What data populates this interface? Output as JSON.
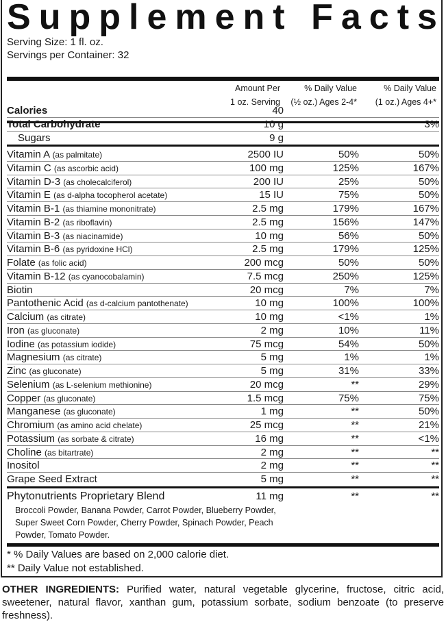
{
  "title": "Supplement Facts",
  "serving_size": "Serving Size: 1 fl. oz.",
  "servings_per_container": "Servings per Container: 32",
  "headers": {
    "amount": [
      "Amount Per",
      "1 oz. Serving"
    ],
    "dv_child": [
      "% Daily Value",
      "(½ oz.) Ages 2-4*"
    ],
    "dv_adult": [
      "% Daily Value",
      "(1 oz.) Ages 4+*"
    ]
  },
  "macros": [
    {
      "name": "Calories",
      "qualifier": "",
      "amount": "40",
      "dv_child": "",
      "dv_adult": "",
      "bold": true
    },
    {
      "name": "Total Carbohydrate",
      "qualifier": "",
      "amount": "10 g",
      "dv_child": "",
      "dv_adult": "3%",
      "bold": true
    },
    {
      "name": "Sugars",
      "qualifier": "",
      "amount": "9 g",
      "dv_child": "",
      "dv_adult": "",
      "indent": true
    }
  ],
  "nutrients": [
    {
      "name": "Vitamin A",
      "qualifier": "(as palmitate)",
      "amount": "2500 IU",
      "dv_child": "50%",
      "dv_adult": "50%"
    },
    {
      "name": "Vitamin C",
      "qualifier": "(as ascorbic acid)",
      "amount": "100 mg",
      "dv_child": "125%",
      "dv_adult": "167%"
    },
    {
      "name": "Vitamin D-3",
      "qualifier": "(as cholecalciferol)",
      "amount": "200 IU",
      "dv_child": "25%",
      "dv_adult": "50%"
    },
    {
      "name": "Vitamin E",
      "qualifier": "(as d-alpha tocopherol acetate)",
      "amount": "15 IU",
      "dv_child": "75%",
      "dv_adult": "50%"
    },
    {
      "name": "Vitamin B-1",
      "qualifier": "(as thiamine mononitrate)",
      "amount": "2.5 mg",
      "dv_child": "179%",
      "dv_adult": "167%"
    },
    {
      "name": "Vitamin B-2",
      "qualifier": "(as riboflavin)",
      "amount": "2.5 mg",
      "dv_child": "156%",
      "dv_adult": "147%"
    },
    {
      "name": "Vitamin B-3",
      "qualifier": "(as niacinamide)",
      "amount": "10 mg",
      "dv_child": "56%",
      "dv_adult": "50%"
    },
    {
      "name": "Vitamin B-6",
      "qualifier": "(as pyridoxine HCl)",
      "amount": "2.5 mg",
      "dv_child": "179%",
      "dv_adult": "125%"
    },
    {
      "name": "Folate",
      "qualifier": "(as folic acid)",
      "amount": "200 mcg",
      "dv_child": "50%",
      "dv_adult": "50%"
    },
    {
      "name": "Vitamin B-12",
      "qualifier": "(as cyanocobalamin)",
      "amount": "7.5 mcg",
      "dv_child": "250%",
      "dv_adult": "125%"
    },
    {
      "name": "Biotin",
      "qualifier": "",
      "amount": "20 mcg",
      "dv_child": "7%",
      "dv_adult": "7%"
    },
    {
      "name": "Pantothenic Acid",
      "qualifier": "(as d-calcium pantothenate)",
      "amount": "10 mg",
      "dv_child": "100%",
      "dv_adult": "100%"
    },
    {
      "name": "Calcium",
      "qualifier": "(as citrate)",
      "amount": "10 mg",
      "dv_child": "<1%",
      "dv_adult": "1%"
    },
    {
      "name": "Iron",
      "qualifier": "(as gluconate)",
      "amount": "2 mg",
      "dv_child": "10%",
      "dv_adult": "11%"
    },
    {
      "name": "Iodine",
      "qualifier": "(as potassium iodide)",
      "amount": "75 mcg",
      "dv_child": "54%",
      "dv_adult": "50%"
    },
    {
      "name": "Magnesium",
      "qualifier": "(as citrate)",
      "amount": "5 mg",
      "dv_child": "1%",
      "dv_adult": "1%"
    },
    {
      "name": "Zinc",
      "qualifier": "(as gluconate)",
      "amount": "5 mg",
      "dv_child": "31%",
      "dv_adult": "33%"
    },
    {
      "name": "Selenium",
      "qualifier": "(as L-selenium methionine)",
      "amount": "20 mcg",
      "dv_child": "**",
      "dv_adult": "29%"
    },
    {
      "name": "Copper",
      "qualifier": "(as gluconate)",
      "amount": "1.5 mcg",
      "dv_child": "75%",
      "dv_adult": "75%"
    },
    {
      "name": "Manganese",
      "qualifier": "(as gluconate)",
      "amount": "1 mg",
      "dv_child": "**",
      "dv_adult": "50%"
    },
    {
      "name": "Chromium",
      "qualifier": "(as amino acid chelate)",
      "amount": "25 mcg",
      "dv_child": "**",
      "dv_adult": "21%"
    },
    {
      "name": "Potassium",
      "qualifier": "(as sorbate & citrate)",
      "amount": "16 mg",
      "dv_child": "**",
      "dv_adult": "<1%"
    },
    {
      "name": "Choline",
      "qualifier": "(as bitartrate)",
      "amount": "2 mg",
      "dv_child": "**",
      "dv_adult": "**"
    },
    {
      "name": "Inositol",
      "qualifier": "",
      "amount": "2 mg",
      "dv_child": "**",
      "dv_adult": "**"
    },
    {
      "name": "Grape Seed Extract",
      "qualifier": "",
      "amount": "5 mg",
      "dv_child": "**",
      "dv_adult": "**"
    }
  ],
  "blend": {
    "name": "Phytonutrients Proprietary Blend",
    "qualifier": "",
    "amount": "11 mg",
    "dv_child": "**",
    "dv_adult": "**",
    "ingredients": "Broccoli Powder, Banana Powder, Carrot Powder, Blueberry Powder, Super Sweet Corn Powder, Cherry Powder, Spinach Powder, Peach Powder, Tomato Powder."
  },
  "footnotes": [
    "* % Daily Values are based on 2,000 calorie diet.",
    "** Daily Value not established."
  ],
  "other_ingredients": {
    "label": "OTHER INGREDIENTS:",
    "text": " Purified water, natural vegetable glycerine, fructose, citric acid, sweetener, natural flavor, xanthan gum, potassium sorbate, sodium benzoate (to preserve freshness)."
  }
}
